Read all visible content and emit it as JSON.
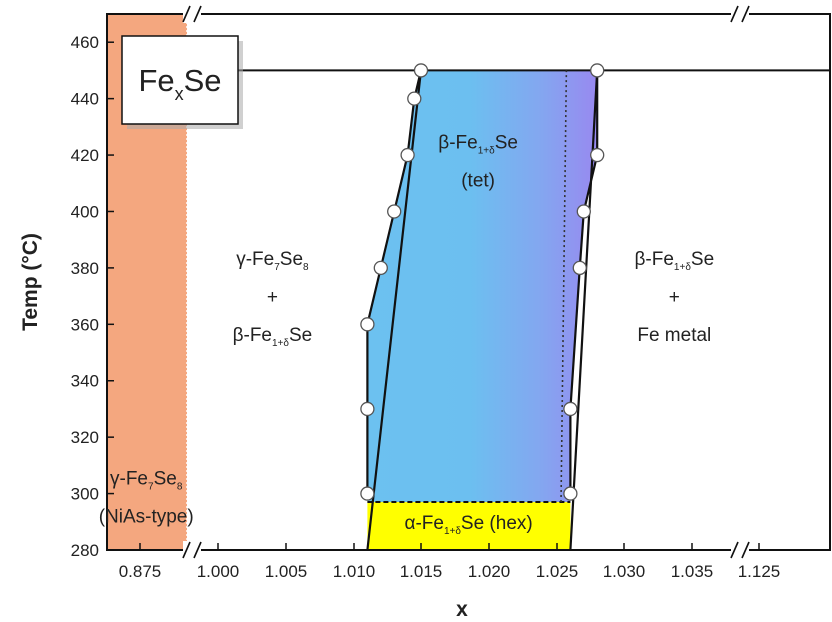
{
  "chart_data": {
    "type": "area",
    "title": "Fe_xSe",
    "title_parts": {
      "base": "Fe",
      "sub": "x",
      "suffix": "Se"
    },
    "xlabel": "x",
    "ylabel": "Temp (°C)",
    "x_ticks": [
      "0.875",
      "1.000",
      "1.005",
      "1.010",
      "1.015",
      "1.020",
      "1.025",
      "1.030",
      "1.035",
      "1.125"
    ],
    "y_ticks": [
      280,
      300,
      320,
      340,
      360,
      380,
      400,
      420,
      440,
      460
    ],
    "ylim": [
      280,
      470
    ],
    "xlim_main": [
      0.995,
      1.035
    ],
    "axis_breaks": [
      "between 0.875 and 1.000",
      "between 1.030 and 1.035"
    ],
    "grid": false,
    "boundary_temp": 450,
    "left_boundary": [
      {
        "x": 1.011,
        "y": 300
      },
      {
        "x": 1.011,
        "y": 330
      },
      {
        "x": 1.011,
        "y": 360
      },
      {
        "x": 1.012,
        "y": 380
      },
      {
        "x": 1.013,
        "y": 400
      },
      {
        "x": 1.014,
        "y": 420
      },
      {
        "x": 1.0145,
        "y": 440
      },
      {
        "x": 1.015,
        "y": 450
      }
    ],
    "right_boundary": [
      {
        "x": 1.026,
        "y": 300
      },
      {
        "x": 1.026,
        "y": 330
      },
      {
        "x": 1.0267,
        "y": 380
      },
      {
        "x": 1.027,
        "y": 400
      },
      {
        "x": 1.028,
        "y": 420
      },
      {
        "x": 1.028,
        "y": 450
      }
    ],
    "dashed_line_temp": 297,
    "dotted_line": [
      {
        "x": 1.0253,
        "y": 297
      },
      {
        "x": 1.0257,
        "y": 450
      }
    ],
    "regions": [
      {
        "name": "gamma-FeSe-NiAs",
        "lines": [
          [
            {
              "t": "γ-Fe"
            },
            {
              "t": "7",
              "sub": true
            },
            {
              "t": "Se"
            },
            {
              "t": "8",
              "sub": true
            }
          ],
          [
            {
              "t": "(NiAs-type)"
            }
          ]
        ],
        "x": 0.997,
        "y": 299,
        "color": "#f4a77f"
      },
      {
        "name": "gamma-plus-beta",
        "lines": [
          [
            {
              "t": "γ-Fe"
            },
            {
              "t": "7",
              "sub": true
            },
            {
              "t": "Se"
            },
            {
              "t": "8",
              "sub": true
            }
          ],
          [
            {
              "t": "+"
            }
          ],
          [
            {
              "t": "β-Fe"
            },
            {
              "t": "1+δ",
              "sub": true
            },
            {
              "t": "Se"
            }
          ]
        ],
        "x": 1.004,
        "y": 370
      },
      {
        "name": "beta-tet",
        "lines": [
          [
            {
              "t": "β-Fe"
            },
            {
              "t": "1+δ",
              "sub": true
            },
            {
              "t": "Se"
            }
          ],
          [
            {
              "t": "(tet)"
            }
          ]
        ],
        "x": 1.0192,
        "y": 418,
        "color": "#6cc1f0"
      },
      {
        "name": "alpha-hex",
        "lines": [
          [
            {
              "t": "α-Fe"
            },
            {
              "t": "1+δ",
              "sub": true
            },
            {
              "t": "Se (hex)"
            }
          ]
        ],
        "x": 1.0185,
        "y": 290,
        "color": "#ffff00"
      },
      {
        "name": "beta-plus-fe",
        "lines": [
          [
            {
              "t": "β-Fe"
            },
            {
              "t": "1+δ",
              "sub": true
            },
            {
              "t": "Se"
            }
          ],
          [
            {
              "t": "+"
            }
          ],
          [
            {
              "t": "Fe metal"
            }
          ]
        ],
        "x": 1.0337,
        "y": 370
      }
    ]
  }
}
